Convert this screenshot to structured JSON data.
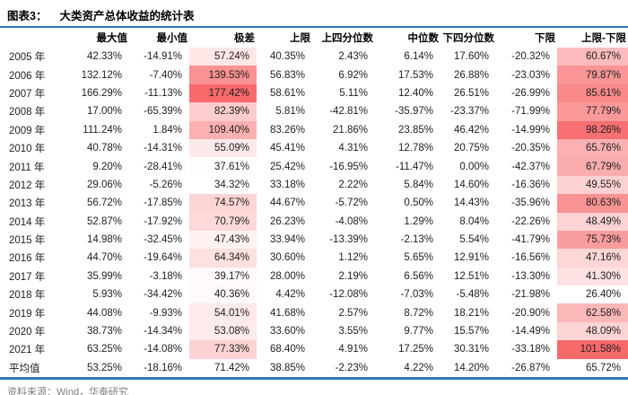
{
  "title": {
    "prefix": "图表3：",
    "text": "大类资产总体收益的统计表"
  },
  "source": "资料来源：Wind，华泰研究",
  "colors": {
    "accent_blue": "#2E75B6",
    "heat_red_max": "#F8696B",
    "heat_white_min": "#FFFFFF",
    "text": "#212121",
    "source_gray": "#7F7F7F"
  },
  "chart_data": {
    "type": "table",
    "title": "图表3： 大类资产总体收益的统计表",
    "columns": [
      "",
      "最大值",
      "最小值",
      "极差",
      "上限",
      "上四分位数",
      "中位数",
      "下四分位数",
      "下限",
      "上限-下限"
    ],
    "heatmap": {
      "value_column_indexes": [
        2,
        8
      ],
      "column_names": [
        "极差",
        "上限-下限"
      ],
      "scale": "white-to-red, linear per column, average row excluded",
      "min_color": "#FFFFFF",
      "max_color": "#F8696B"
    },
    "rows": [
      {
        "label": "2005 年",
        "values": [
          "42.33%",
          "-14.91%",
          "57.24%",
          "40.35%",
          "2.43%",
          "6.14%",
          "17.60%",
          "-20.32%",
          "60.67%"
        ]
      },
      {
        "label": "2006 年",
        "values": [
          "132.12%",
          "-7.40%",
          "139.53%",
          "56.83%",
          "6.92%",
          "17.53%",
          "26.88%",
          "-23.03%",
          "79.87%"
        ]
      },
      {
        "label": "2007 年",
        "values": [
          "166.29%",
          "-11.13%",
          "177.42%",
          "58.61%",
          "5.11%",
          "12.40%",
          "26.51%",
          "-26.99%",
          "85.61%"
        ]
      },
      {
        "label": "2008 年",
        "values": [
          "17.00%",
          "-65.39%",
          "82.39%",
          "5.81%",
          "-42.81%",
          "-35.97%",
          "-23.37%",
          "-71.99%",
          "77.79%"
        ]
      },
      {
        "label": "2009 年",
        "values": [
          "111.24%",
          "1.84%",
          "109.40%",
          "83.26%",
          "21.86%",
          "23.85%",
          "46.42%",
          "-14.99%",
          "98.26%"
        ]
      },
      {
        "label": "2010 年",
        "values": [
          "40.78%",
          "-14.31%",
          "55.09%",
          "45.41%",
          "4.31%",
          "12.78%",
          "20.75%",
          "-20.35%",
          "65.76%"
        ]
      },
      {
        "label": "2011 年",
        "values": [
          "9.20%",
          "-28.41%",
          "37.61%",
          "25.42%",
          "-16.95%",
          "-11.47%",
          "0.00%",
          "-42.37%",
          "67.79%"
        ]
      },
      {
        "label": "2012 年",
        "values": [
          "29.06%",
          "-5.26%",
          "34.32%",
          "33.18%",
          "2.22%",
          "5.84%",
          "14.60%",
          "-16.36%",
          "49.55%"
        ]
      },
      {
        "label": "2013 年",
        "values": [
          "56.72%",
          "-17.85%",
          "74.57%",
          "44.67%",
          "-5.72%",
          "0.50%",
          "14.43%",
          "-35.96%",
          "80.63%"
        ]
      },
      {
        "label": "2014 年",
        "values": [
          "52.87%",
          "-17.92%",
          "70.79%",
          "26.23%",
          "-4.08%",
          "1.29%",
          "8.04%",
          "-22.26%",
          "48.49%"
        ]
      },
      {
        "label": "2015 年",
        "values": [
          "14.98%",
          "-32.45%",
          "47.43%",
          "33.94%",
          "-13.39%",
          "-2.13%",
          "5.54%",
          "-41.79%",
          "75.73%"
        ]
      },
      {
        "label": "2016 年",
        "values": [
          "44.70%",
          "-19.64%",
          "64.34%",
          "30.60%",
          "1.12%",
          "5.65%",
          "12.91%",
          "-16.56%",
          "47.16%"
        ]
      },
      {
        "label": "2017 年",
        "values": [
          "35.99%",
          "-3.18%",
          "39.17%",
          "28.00%",
          "2.19%",
          "6.56%",
          "12.51%",
          "-13.30%",
          "41.30%"
        ]
      },
      {
        "label": "2018 年",
        "values": [
          "5.93%",
          "-34.42%",
          "40.36%",
          "4.42%",
          "-12.08%",
          "-7.03%",
          "-5.48%",
          "-21.98%",
          "26.40%"
        ]
      },
      {
        "label": "2019 年",
        "values": [
          "44.08%",
          "-9.93%",
          "54.01%",
          "41.68%",
          "2.57%",
          "8.72%",
          "18.21%",
          "-20.90%",
          "62.58%"
        ]
      },
      {
        "label": "2020 年",
        "values": [
          "38.73%",
          "-14.34%",
          "53.08%",
          "33.60%",
          "3.55%",
          "9.77%",
          "15.57%",
          "-14.49%",
          "48.09%"
        ]
      },
      {
        "label": "2021 年",
        "values": [
          "63.25%",
          "-14.08%",
          "77.33%",
          "68.40%",
          "4.91%",
          "17.25%",
          "30.31%",
          "-33.18%",
          "101.58%"
        ]
      },
      {
        "label": "平均值",
        "values": [
          "53.25%",
          "-18.16%",
          "71.42%",
          "38.85%",
          "-2.23%",
          "4.22%",
          "14.20%",
          "-26.87%",
          "65.72%"
        ]
      }
    ],
    "average_row_label": "平均值",
    "source": "资料来源：Wind，华泰研究"
  }
}
